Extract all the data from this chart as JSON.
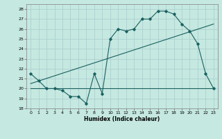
{
  "xlabel": "Humidex (Indice chaleur)",
  "bg_color": "#c5e8e0",
  "grid_color": "#a8cccc",
  "line_color": "#1a6060",
  "xlim": [
    -0.5,
    23.5
  ],
  "ylim": [
    18,
    28.5
  ],
  "yticks": [
    18,
    19,
    20,
    21,
    22,
    23,
    24,
    25,
    26,
    27,
    28
  ],
  "xticks": [
    0,
    1,
    2,
    3,
    4,
    5,
    6,
    7,
    8,
    9,
    10,
    11,
    12,
    13,
    14,
    15,
    16,
    17,
    18,
    19,
    20,
    21,
    22,
    23
  ],
  "curve_x": [
    0,
    1,
    2,
    3,
    4,
    5,
    6,
    7,
    8,
    9,
    10,
    11,
    12,
    13,
    14,
    15,
    16,
    17,
    18,
    19,
    20,
    21,
    22,
    23
  ],
  "curve_y": [
    21.5,
    20.8,
    20.0,
    20.0,
    19.8,
    19.2,
    19.2,
    18.5,
    21.5,
    19.5,
    25.0,
    26.0,
    25.8,
    26.0,
    27.0,
    27.0,
    27.8,
    27.8,
    27.5,
    26.5,
    25.8,
    24.5,
    21.5,
    20.0
  ],
  "line1_x": [
    0,
    23
  ],
  "line1_y": [
    20.5,
    26.5
  ],
  "line2_x": [
    0,
    23
  ],
  "line2_y": [
    20.0,
    20.0
  ],
  "fontsize_tick": 4.5,
  "fontsize_label": 5.5
}
